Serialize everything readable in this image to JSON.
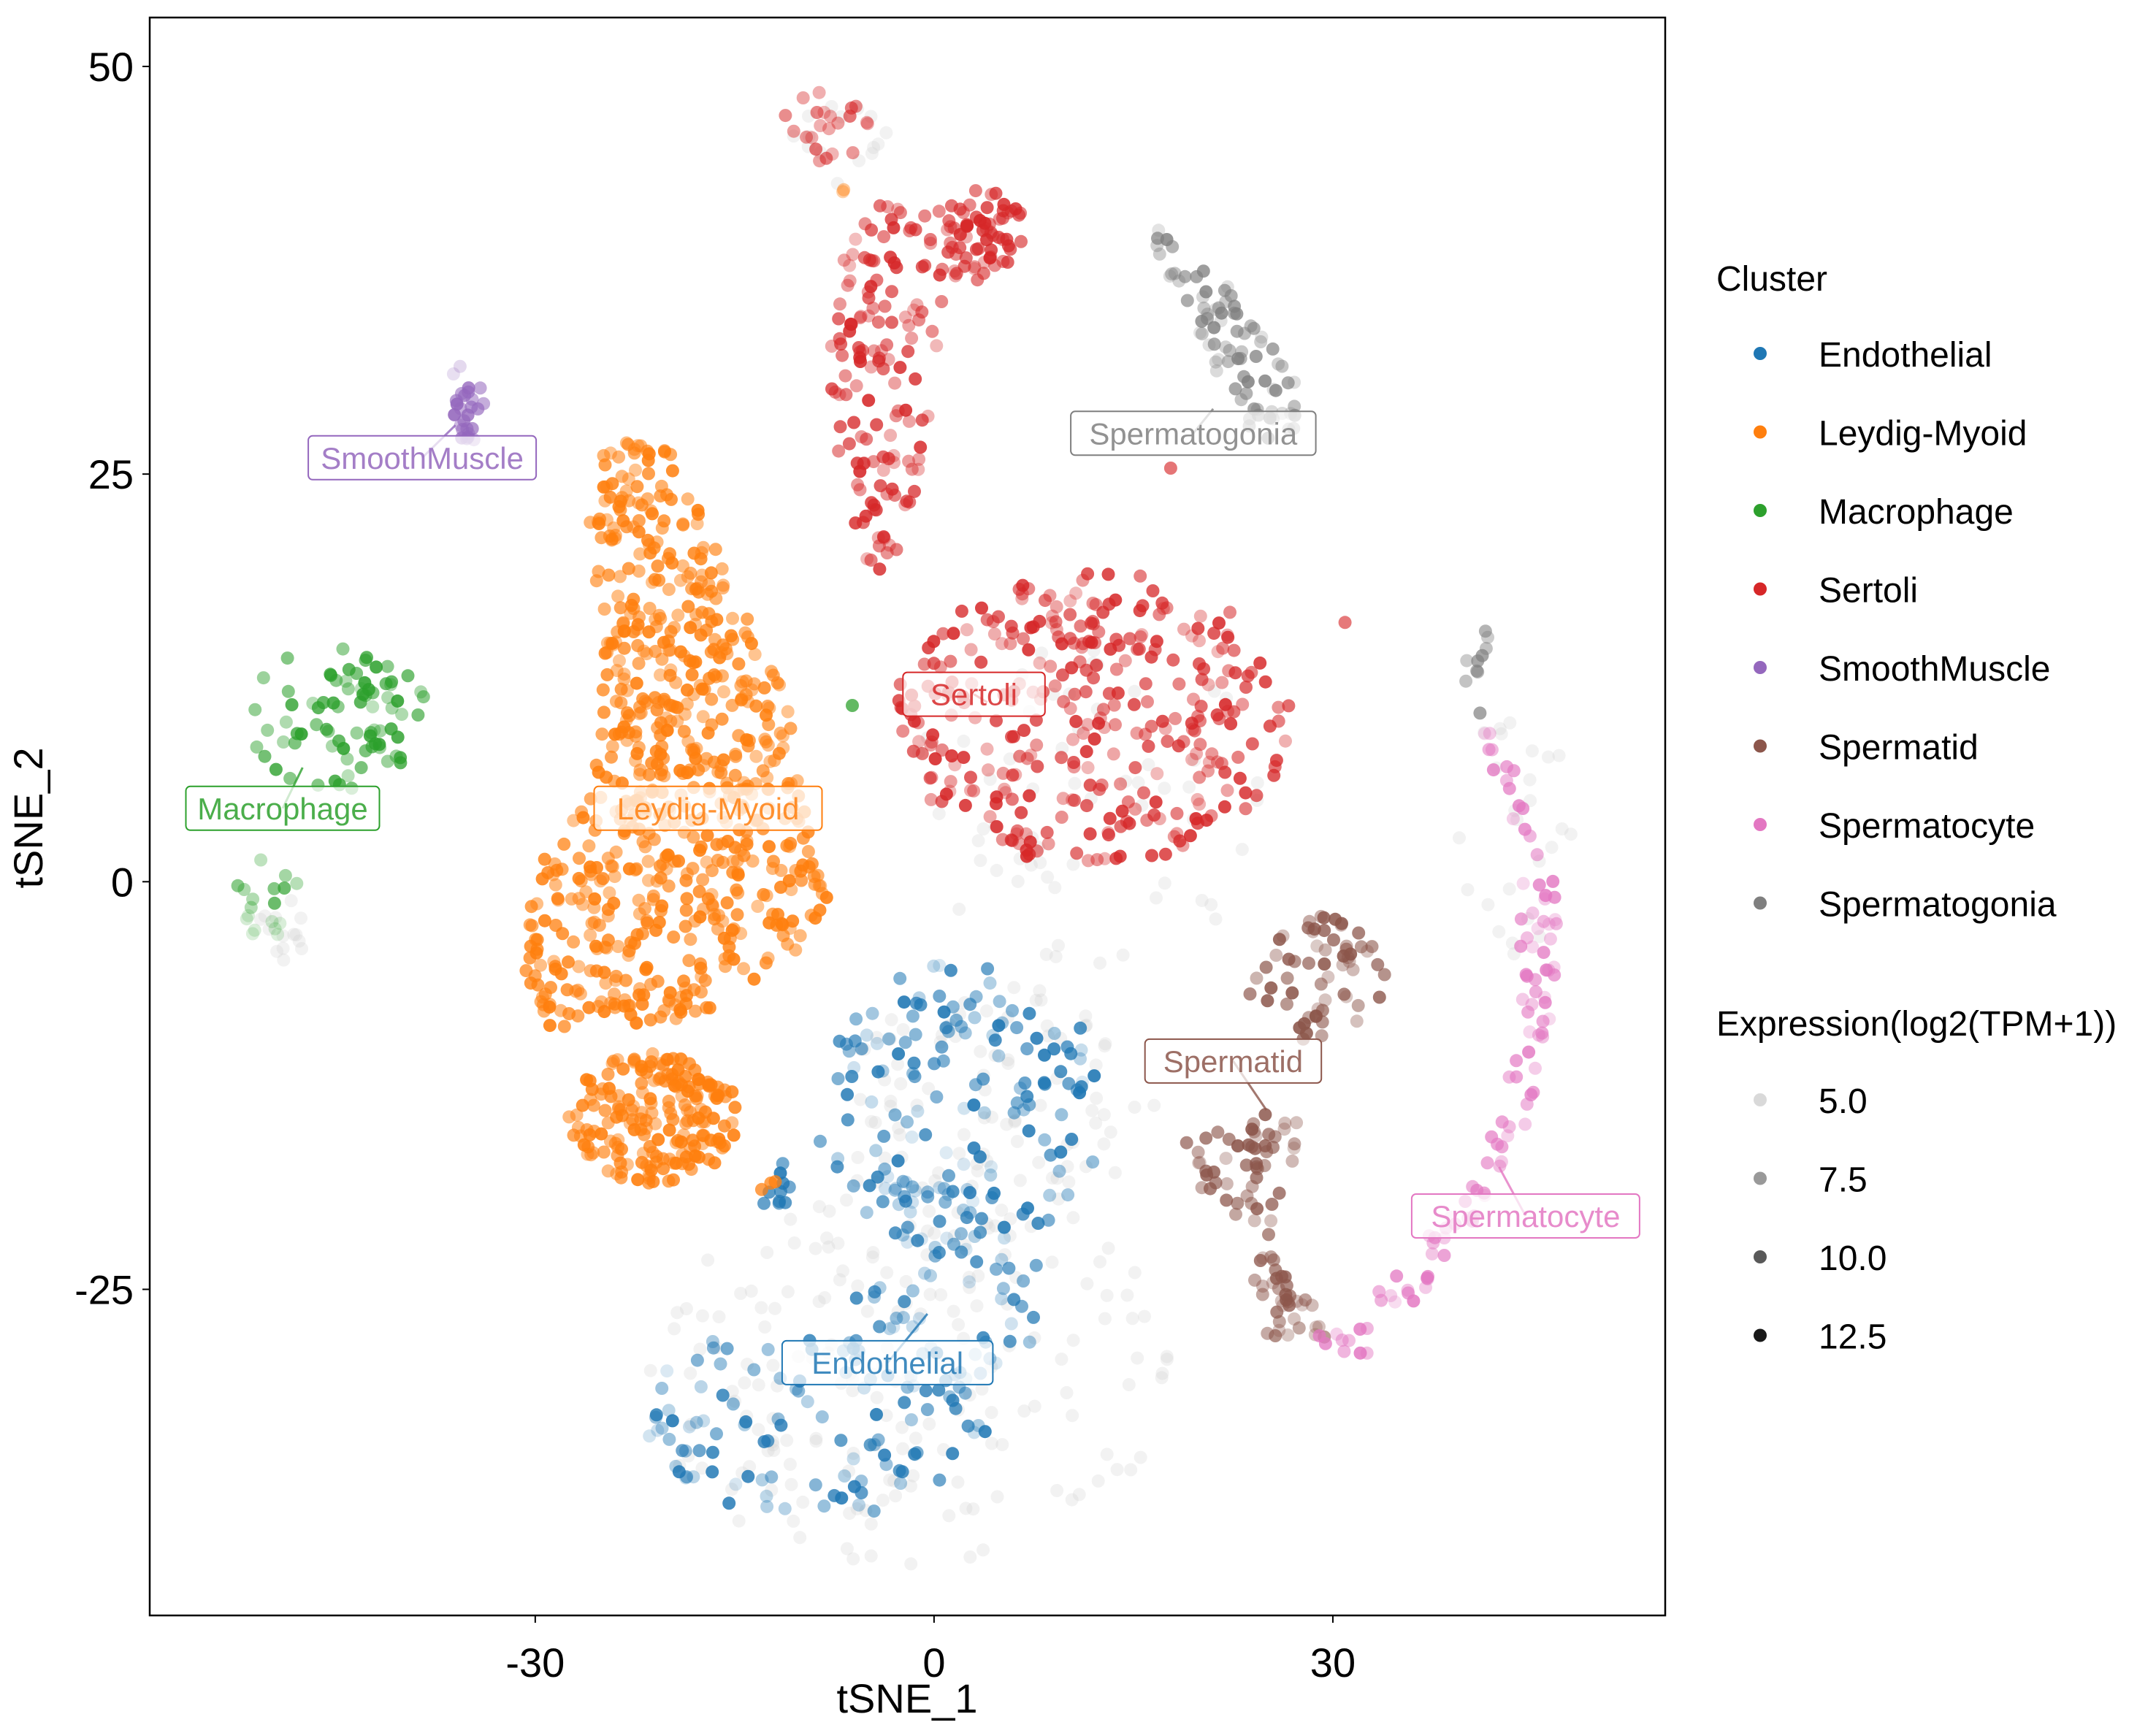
{
  "chart_data": {
    "type": "scatter",
    "title": "",
    "xlabel": "tSNE_1",
    "ylabel": "tSNE_2",
    "xlim": [
      -59,
      55
    ],
    "ylim": [
      -45,
      53
    ],
    "x_ticks": [
      {
        "value": -30,
        "label": "-30"
      },
      {
        "value": 0,
        "label": "0"
      },
      {
        "value": 30,
        "label": "30"
      }
    ],
    "y_ticks": [
      {
        "value": 50,
        "label": "50"
      },
      {
        "value": 25,
        "label": "25"
      },
      {
        "value": 0,
        "label": "0"
      },
      {
        "value": -25,
        "label": "-25"
      }
    ],
    "grid": false,
    "legend_placement": "right",
    "legend_color_title": "Cluster",
    "legend_size_title": "Expression(log2(TPM+1))",
    "expression_levels": [
      {
        "value": 5.0,
        "label": "5.0",
        "opacity": 0.15
      },
      {
        "value": 7.5,
        "label": "7.5",
        "opacity": 0.4
      },
      {
        "value": 10.0,
        "label": "10.0",
        "opacity": 0.65
      },
      {
        "value": 12.5,
        "label": "12.5",
        "opacity": 0.9
      }
    ],
    "series": [
      {
        "name": "Endothelial",
        "color": "#1F77B4",
        "label": "Endothelial",
        "seed": 11,
        "label_pos": [
          -3.5,
          -29.5
        ],
        "label_anchor": [
          -0.5,
          -26.5
        ],
        "regions": [
          {
            "shape": "ellipse",
            "cx": 2,
            "cy": -14,
            "rx": 11,
            "ry": 9,
            "n": 160,
            "expr": [
              5.0,
              12.5
            ]
          },
          {
            "shape": "ellipse",
            "cx": -9,
            "cy": -33,
            "rx": 13,
            "ry": 6,
            "n": 110,
            "expr": [
              5.0,
              12.5
            ]
          },
          {
            "shape": "ellipse",
            "cx": 1,
            "cy": -25,
            "rx": 7,
            "ry": 7,
            "n": 60,
            "expr": [
              5.0,
              11.5
            ]
          },
          {
            "shape": "ellipse",
            "cx": -12,
            "cy": -19,
            "rx": 1.3,
            "ry": 2,
            "n": 10,
            "expr": [
              9.5,
              12.5
            ]
          }
        ]
      },
      {
        "name": "Leydig-Myoid",
        "color": "#FF7F0E",
        "label": "Leydig-Myoid",
        "seed": 22,
        "label_pos": [
          -17,
          4.5
        ],
        "label_anchor": [
          -17,
          4.5
        ],
        "regions": [
          {
            "shape": "poly",
            "points": [
              [
                -25,
                27
              ],
              [
                -20,
                27
              ],
              [
                -15,
                18
              ],
              [
                -11,
                11
              ],
              [
                -10,
                6
              ],
              [
                -9,
                2
              ],
              [
                -8,
                -1
              ],
              [
                -11,
                -5
              ],
              [
                -16,
                -8
              ],
              [
                -22,
                -9
              ],
              [
                -29,
                -9
              ],
              [
                -31,
                -5
              ],
              [
                -30,
                1
              ],
              [
                -27,
                4
              ],
              [
                -25,
                8
              ],
              [
                -25,
                16
              ],
              [
                -26,
                22
              ]
            ],
            "n": 700,
            "expr": [
              8.0,
              12.5
            ]
          },
          {
            "shape": "ellipse",
            "cx": -21,
            "cy": -14.5,
            "rx": 6.5,
            "ry": 4,
            "n": 190,
            "expr": [
              8.0,
              12.5
            ]
          },
          {
            "shape": "ellipse",
            "cx": -12.5,
            "cy": -18.5,
            "rx": 0.8,
            "ry": 0.5,
            "n": 3,
            "expr": [
              9.0,
              11.0
            ]
          },
          {
            "shape": "ellipse",
            "cx": -6.8,
            "cy": 42.5,
            "rx": 0.6,
            "ry": 0.4,
            "n": 2,
            "expr": [
              7.0,
              9.0
            ]
          }
        ]
      },
      {
        "name": "Macrophage",
        "color": "#2CA02C",
        "label": "Macrophage",
        "seed": 33,
        "label_pos": [
          -49,
          4.5
        ],
        "label_anchor": [
          -47.5,
          7
        ],
        "regions": [
          {
            "shape": "ellipse",
            "cx": -45,
            "cy": 10,
            "rx": 7,
            "ry": 4.5,
            "n": 80,
            "expr": [
              6.5,
              12.5
            ]
          },
          {
            "shape": "ellipse",
            "cx": -50,
            "cy": -0.5,
            "rx": 3,
            "ry": 2,
            "n": 10,
            "expr": [
              6.5,
              11.0
            ]
          },
          {
            "shape": "ellipse",
            "cx": -50.5,
            "cy": -3,
            "rx": 2,
            "ry": 1.2,
            "n": 8,
            "expr": [
              5.0,
              6.0
            ]
          },
          {
            "shape": "ellipse",
            "cx": -6,
            "cy": 11,
            "rx": 0.3,
            "ry": 0.3,
            "n": 1,
            "expr": [
              10.5,
              11.5
            ]
          }
        ]
      },
      {
        "name": "Sertoli",
        "color": "#D62728",
        "label": "Sertoli",
        "seed": 44,
        "label_pos": [
          3,
          11.5
        ],
        "label_anchor": [
          4,
          11
        ],
        "regions": [
          {
            "shape": "ellipse",
            "cx": 12,
            "cy": 10,
            "rx": 15,
            "ry": 9,
            "n": 330,
            "expr": [
              6.5,
              12.5
            ]
          },
          {
            "shape": "poly",
            "points": [
              [
                -7,
                38
              ],
              [
                -5,
                42
              ],
              [
                0,
                41
              ],
              [
                2,
                42
              ],
              [
                6,
                39
              ],
              [
                4,
                37
              ],
              [
                1,
                35
              ],
              [
                -1,
                25
              ],
              [
                -3,
                19
              ],
              [
                -5,
                19
              ],
              [
                -7,
                25
              ],
              [
                -8,
                31
              ]
            ],
            "n": 170,
            "expr": [
              6.5,
              12.5
            ]
          },
          {
            "shape": "ellipse",
            "cx": 4,
            "cy": 40,
            "rx": 3,
            "ry": 2.5,
            "n": 40,
            "expr": [
              8.0,
              12.5
            ]
          },
          {
            "shape": "ellipse",
            "cx": -8,
            "cy": 46,
            "rx": 3.5,
            "ry": 2.5,
            "n": 22,
            "expr": [
              6.5,
              10.0
            ]
          },
          {
            "shape": "ellipse",
            "cx": 31,
            "cy": 16,
            "rx": 0.3,
            "ry": 0.3,
            "n": 1,
            "expr": [
              9.5,
              10.5
            ]
          },
          {
            "shape": "ellipse",
            "cx": 18,
            "cy": 25.5,
            "rx": 0.3,
            "ry": 0.3,
            "n": 1,
            "expr": [
              9.0,
              10.0
            ]
          }
        ]
      },
      {
        "name": "SmoothMuscle",
        "color": "#9467BD",
        "label": "SmoothMuscle",
        "seed": 55,
        "label_pos": [
          -38.5,
          26
        ],
        "label_anchor": [
          -36,
          28
        ],
        "regions": [
          {
            "shape": "ellipse",
            "cx": -35,
            "cy": 29,
            "rx": 1.2,
            "ry": 2,
            "n": 24,
            "expr": [
              8.0,
              12.5
            ]
          },
          {
            "shape": "ellipse",
            "cx": -36,
            "cy": 31.5,
            "rx": 0.5,
            "ry": 0.4,
            "n": 2,
            "expr": [
              5.5,
              7.0
            ]
          }
        ]
      },
      {
        "name": "Spermatid",
        "color": "#8C564B",
        "label": "Spermatid",
        "seed": 66,
        "label_pos": [
          22.5,
          -11
        ],
        "label_anchor": [
          25,
          -14
        ],
        "regions": [
          {
            "shape": "ellipse",
            "cx": 29,
            "cy": -6,
            "rx": 5,
            "ry": 4,
            "n": 60,
            "expr": [
              6.5,
              12.5
            ]
          },
          {
            "shape": "poly",
            "points": [
              [
                19,
                -16
              ],
              [
                25,
                -14
              ],
              [
                28,
                -14
              ],
              [
                26,
                -20
              ],
              [
                24,
                -24
              ],
              [
                25,
                -28
              ],
              [
                31,
                -28
              ],
              [
                29,
                -26
              ],
              [
                25,
                -22
              ],
              [
                22,
                -20
              ],
              [
                18,
                -18
              ]
            ],
            "n": 90,
            "expr": [
              6.5,
              12.5
            ]
          },
          {
            "shape": "ellipse",
            "cx": 23.5,
            "cy": -7,
            "rx": 0.3,
            "ry": 0.3,
            "n": 1,
            "expr": [
              9.5,
              10.5
            ]
          }
        ]
      },
      {
        "name": "Spermatocyte",
        "color": "#E377C2",
        "label": "Spermatocyte",
        "seed": 77,
        "label_pos": [
          44.5,
          -20.5
        ],
        "label_anchor": [
          42.5,
          -17.5
        ],
        "regions": [
          {
            "shape": "poly",
            "points": [
              [
                40,
                10
              ],
              [
                43,
                10
              ],
              [
                45,
                5
              ],
              [
                47,
                0
              ],
              [
                47,
                -8
              ],
              [
                45,
                -14
              ],
              [
                42,
                -19
              ],
              [
                38,
                -24
              ],
              [
                33,
                -29
              ],
              [
                29,
                -29
              ],
              [
                27,
                -28
              ],
              [
                31,
                -27
              ],
              [
                36,
                -23
              ],
              [
                40,
                -18
              ],
              [
                43,
                -13
              ],
              [
                44,
                -6
              ],
              [
                44,
                2
              ],
              [
                42,
                7
              ]
            ],
            "n": 110,
            "expr": [
              5.5,
              12.0
            ]
          }
        ]
      },
      {
        "name": "Spermatogonia",
        "color": "#7F7F7F",
        "label": "Spermatogonia",
        "seed": 88,
        "label_pos": [
          19.5,
          27.5
        ],
        "label_anchor": [
          21,
          29
        ],
        "regions": [
          {
            "shape": "poly",
            "points": [
              [
                16,
                41
              ],
              [
                19,
                40
              ],
              [
                22,
                37
              ],
              [
                25,
                34
              ],
              [
                27,
                31
              ],
              [
                28,
                28
              ],
              [
                25,
                27
              ],
              [
                22,
                29
              ],
              [
                21,
                32
              ],
              [
                19,
                35
              ],
              [
                17,
                38
              ]
            ],
            "n": 80,
            "expr": [
              5.5,
              12.0
            ]
          },
          {
            "shape": "ellipse",
            "cx": 41,
            "cy": 13,
            "rx": 1.2,
            "ry": 3,
            "n": 10,
            "expr": [
              6.5,
              11.0
            ]
          }
        ]
      }
    ],
    "background_cells": {
      "color": "#CFCFCF",
      "seed": 99,
      "regions": [
        {
          "shape": "ellipse",
          "cx": -2,
          "cy": -30,
          "rx": 20,
          "ry": 12,
          "n": 180,
          "expr": [
            4.0,
            5.0
          ]
        },
        {
          "shape": "ellipse",
          "cx": 5,
          "cy": -14,
          "rx": 12,
          "ry": 8,
          "n": 90,
          "expr": [
            4.0,
            5.0
          ]
        },
        {
          "shape": "ellipse",
          "cx": 12,
          "cy": 5,
          "rx": 14,
          "ry": 10,
          "n": 60,
          "expr": [
            4.0,
            5.0
          ]
        },
        {
          "shape": "ellipse",
          "cx": 43,
          "cy": 3,
          "rx": 5,
          "ry": 8,
          "n": 25,
          "expr": [
            4.0,
            5.0
          ]
        },
        {
          "shape": "ellipse",
          "cx": -49,
          "cy": -3,
          "rx": 3,
          "ry": 2,
          "n": 14,
          "expr": [
            4.0,
            5.0
          ]
        },
        {
          "shape": "ellipse",
          "cx": -7,
          "cy": 45,
          "rx": 4,
          "ry": 3,
          "n": 15,
          "expr": [
            4.0,
            5.0
          ]
        }
      ]
    }
  }
}
